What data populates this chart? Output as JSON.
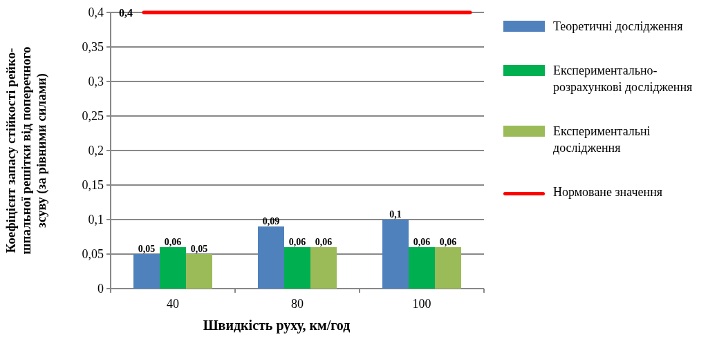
{
  "chart_data": {
    "type": "bar",
    "xlabel": "Швидкість руху, км/год",
    "ylabel": "Коефіцієнт запасу стійкості рейко-шпальної решітки від поперечного зсуву (за рівними силами)",
    "categories": [
      "40",
      "80",
      "100"
    ],
    "series": [
      {
        "name": "Теоретичні дослідження",
        "color": "#4f81bd",
        "values": [
          0.05,
          0.09,
          0.1
        ],
        "value_labels": [
          "0,05",
          "0,09",
          "0,1"
        ]
      },
      {
        "name": "Експериментально-розрахункові дослідження",
        "color": "#00b050",
        "values": [
          0.06,
          0.06,
          0.06
        ],
        "value_labels": [
          "0,06",
          "0,06",
          "0,06"
        ]
      },
      {
        "name": "Експериментальні дослідження",
        "color": "#9bbb59",
        "values": [
          0.05,
          0.06,
          0.06
        ],
        "value_labels": [
          "0,05",
          "0,06",
          "0,06"
        ]
      }
    ],
    "ref_lines": [
      {
        "axis": "y",
        "value": 0.4,
        "label": "Нормоване значення",
        "color": "#ff0000"
      }
    ],
    "annotations": [
      "0,4"
    ],
    "ylim": [
      0,
      0.4
    ],
    "yticks": [
      0,
      {
        "value": 0.05,
        "label": "0,05"
      },
      {
        "value": 0.1,
        "label": "0,1"
      },
      {
        "value": 0.15,
        "label": "0,15"
      },
      {
        "value": 0.2,
        "label": "0,2"
      },
      {
        "value": 0.25,
        "label": "0,25"
      },
      {
        "value": 0.3,
        "label": "0,3"
      },
      {
        "value": 0.35,
        "label": "0,35"
      },
      {
        "value": 0.4,
        "label": "0,4"
      }
    ],
    "grid": "y",
    "legend": "right"
  }
}
